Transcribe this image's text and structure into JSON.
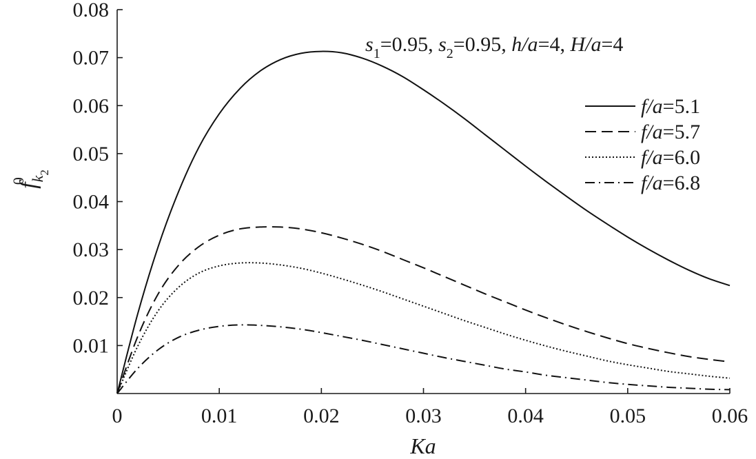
{
  "chart_data": {
    "type": "line",
    "xlabel": "Ka",
    "ylabel_main": "f",
    "ylabel_sup": "0",
    "ylabel_sub": "k",
    "ylabel_subsub": "2",
    "xlim": [
      0,
      0.06
    ],
    "ylim": [
      0,
      0.08
    ],
    "x_ticks": [
      0,
      0.01,
      0.02,
      0.03,
      0.04,
      0.05,
      0.06
    ],
    "x_tick_labels": [
      "0",
      "0.01",
      "0.02",
      "0.03",
      "0.04",
      "0.05",
      "0.06"
    ],
    "y_ticks": [
      0.01,
      0.02,
      0.03,
      0.04,
      0.05,
      0.06,
      0.07,
      0.08
    ],
    "y_tick_labels": [
      "0.01",
      "0.02",
      "0.03",
      "0.04",
      "0.05",
      "0.06",
      "0.07",
      "0.08"
    ],
    "grid": false,
    "legend_position": "right",
    "annotation": {
      "s1_label": "s",
      "s1_sub": "1",
      "s1_value": "=0.95, ",
      "s2_label": "s",
      "s2_sub": "2",
      "s2_value": "=0.95, ",
      "h_label": "h/a",
      "h_value": "=4, ",
      "H_label": "H/a",
      "H_value": "=4"
    },
    "series": [
      {
        "name": "f/a=5.1",
        "legend_var": "f/a",
        "legend_value": "=5.1",
        "dash": "solid",
        "x": [
          0,
          0.002,
          0.004,
          0.006,
          0.008,
          0.01,
          0.012,
          0.014,
          0.016,
          0.018,
          0.02,
          0.022,
          0.024,
          0.026,
          0.028,
          0.03,
          0.032,
          0.034,
          0.036,
          0.038,
          0.04,
          0.042,
          0.044,
          0.046,
          0.048,
          0.05,
          0.052,
          0.054,
          0.056,
          0.058,
          0.06
        ],
        "y": [
          0,
          0.0165,
          0.0305,
          0.042,
          0.0513,
          0.0583,
          0.0635,
          0.0672,
          0.0696,
          0.0709,
          0.0713,
          0.071,
          0.0699,
          0.0682,
          0.066,
          0.0633,
          0.0604,
          0.0573,
          0.054,
          0.0507,
          0.0474,
          0.0442,
          0.0411,
          0.0381,
          0.0353,
          0.0326,
          0.0301,
          0.0278,
          0.0257,
          0.0239,
          0.0225
        ]
      },
      {
        "name": "f/a=5.7",
        "legend_var": "f/a",
        "legend_value": "=5.7",
        "dash": "dashed",
        "x": [
          0,
          0.002,
          0.004,
          0.006,
          0.008,
          0.01,
          0.012,
          0.014,
          0.016,
          0.018,
          0.02,
          0.022,
          0.024,
          0.026,
          0.028,
          0.03,
          0.032,
          0.034,
          0.036,
          0.038,
          0.04,
          0.042,
          0.044,
          0.046,
          0.048,
          0.05,
          0.052,
          0.054,
          0.056,
          0.058,
          0.06
        ],
        "y": [
          0,
          0.0118,
          0.0207,
          0.0267,
          0.0306,
          0.033,
          0.0343,
          0.0347,
          0.0347,
          0.0343,
          0.0335,
          0.0324,
          0.0311,
          0.0296,
          0.0279,
          0.0262,
          0.0244,
          0.0226,
          0.0208,
          0.0191,
          0.0174,
          0.0158,
          0.0143,
          0.0129,
          0.0116,
          0.0104,
          0.0094,
          0.0085,
          0.0077,
          0.0071,
          0.0066
        ]
      },
      {
        "name": "f/a=6.0",
        "legend_var": "f/a",
        "legend_value": "=6.0",
        "dash": "dotted",
        "x": [
          0,
          0.002,
          0.004,
          0.006,
          0.008,
          0.01,
          0.012,
          0.014,
          0.016,
          0.018,
          0.02,
          0.022,
          0.024,
          0.026,
          0.028,
          0.03,
          0.032,
          0.034,
          0.036,
          0.038,
          0.04,
          0.042,
          0.044,
          0.046,
          0.048,
          0.05,
          0.052,
          0.054,
          0.056,
          0.058,
          0.06
        ],
        "y": [
          0,
          0.0098,
          0.0172,
          0.0221,
          0.0251,
          0.0266,
          0.0272,
          0.0272,
          0.0268,
          0.0261,
          0.0251,
          0.0239,
          0.0226,
          0.0212,
          0.0197,
          0.0182,
          0.0167,
          0.0152,
          0.0138,
          0.0124,
          0.0111,
          0.0099,
          0.0088,
          0.0078,
          0.0068,
          0.006,
          0.0053,
          0.0046,
          0.0041,
          0.0036,
          0.0032
        ]
      },
      {
        "name": "f/a=6.8",
        "legend_var": "f/a",
        "legend_value": "=6.8",
        "dash": "dashdot",
        "x": [
          0,
          0.002,
          0.004,
          0.006,
          0.008,
          0.01,
          0.012,
          0.014,
          0.016,
          0.018,
          0.02,
          0.022,
          0.024,
          0.026,
          0.028,
          0.03,
          0.032,
          0.034,
          0.036,
          0.038,
          0.04,
          0.042,
          0.044,
          0.046,
          0.048,
          0.05,
          0.052,
          0.054,
          0.056,
          0.058,
          0.06
        ],
        "y": [
          0,
          0.0052,
          0.0091,
          0.0117,
          0.0132,
          0.014,
          0.0143,
          0.0142,
          0.0139,
          0.0134,
          0.0127,
          0.0119,
          0.0111,
          0.0102,
          0.0093,
          0.0084,
          0.0075,
          0.0067,
          0.0059,
          0.0051,
          0.0045,
          0.0038,
          0.0033,
          0.0028,
          0.0023,
          0.0019,
          0.0016,
          0.0013,
          0.0011,
          0.0009,
          0.0008
        ]
      }
    ]
  }
}
